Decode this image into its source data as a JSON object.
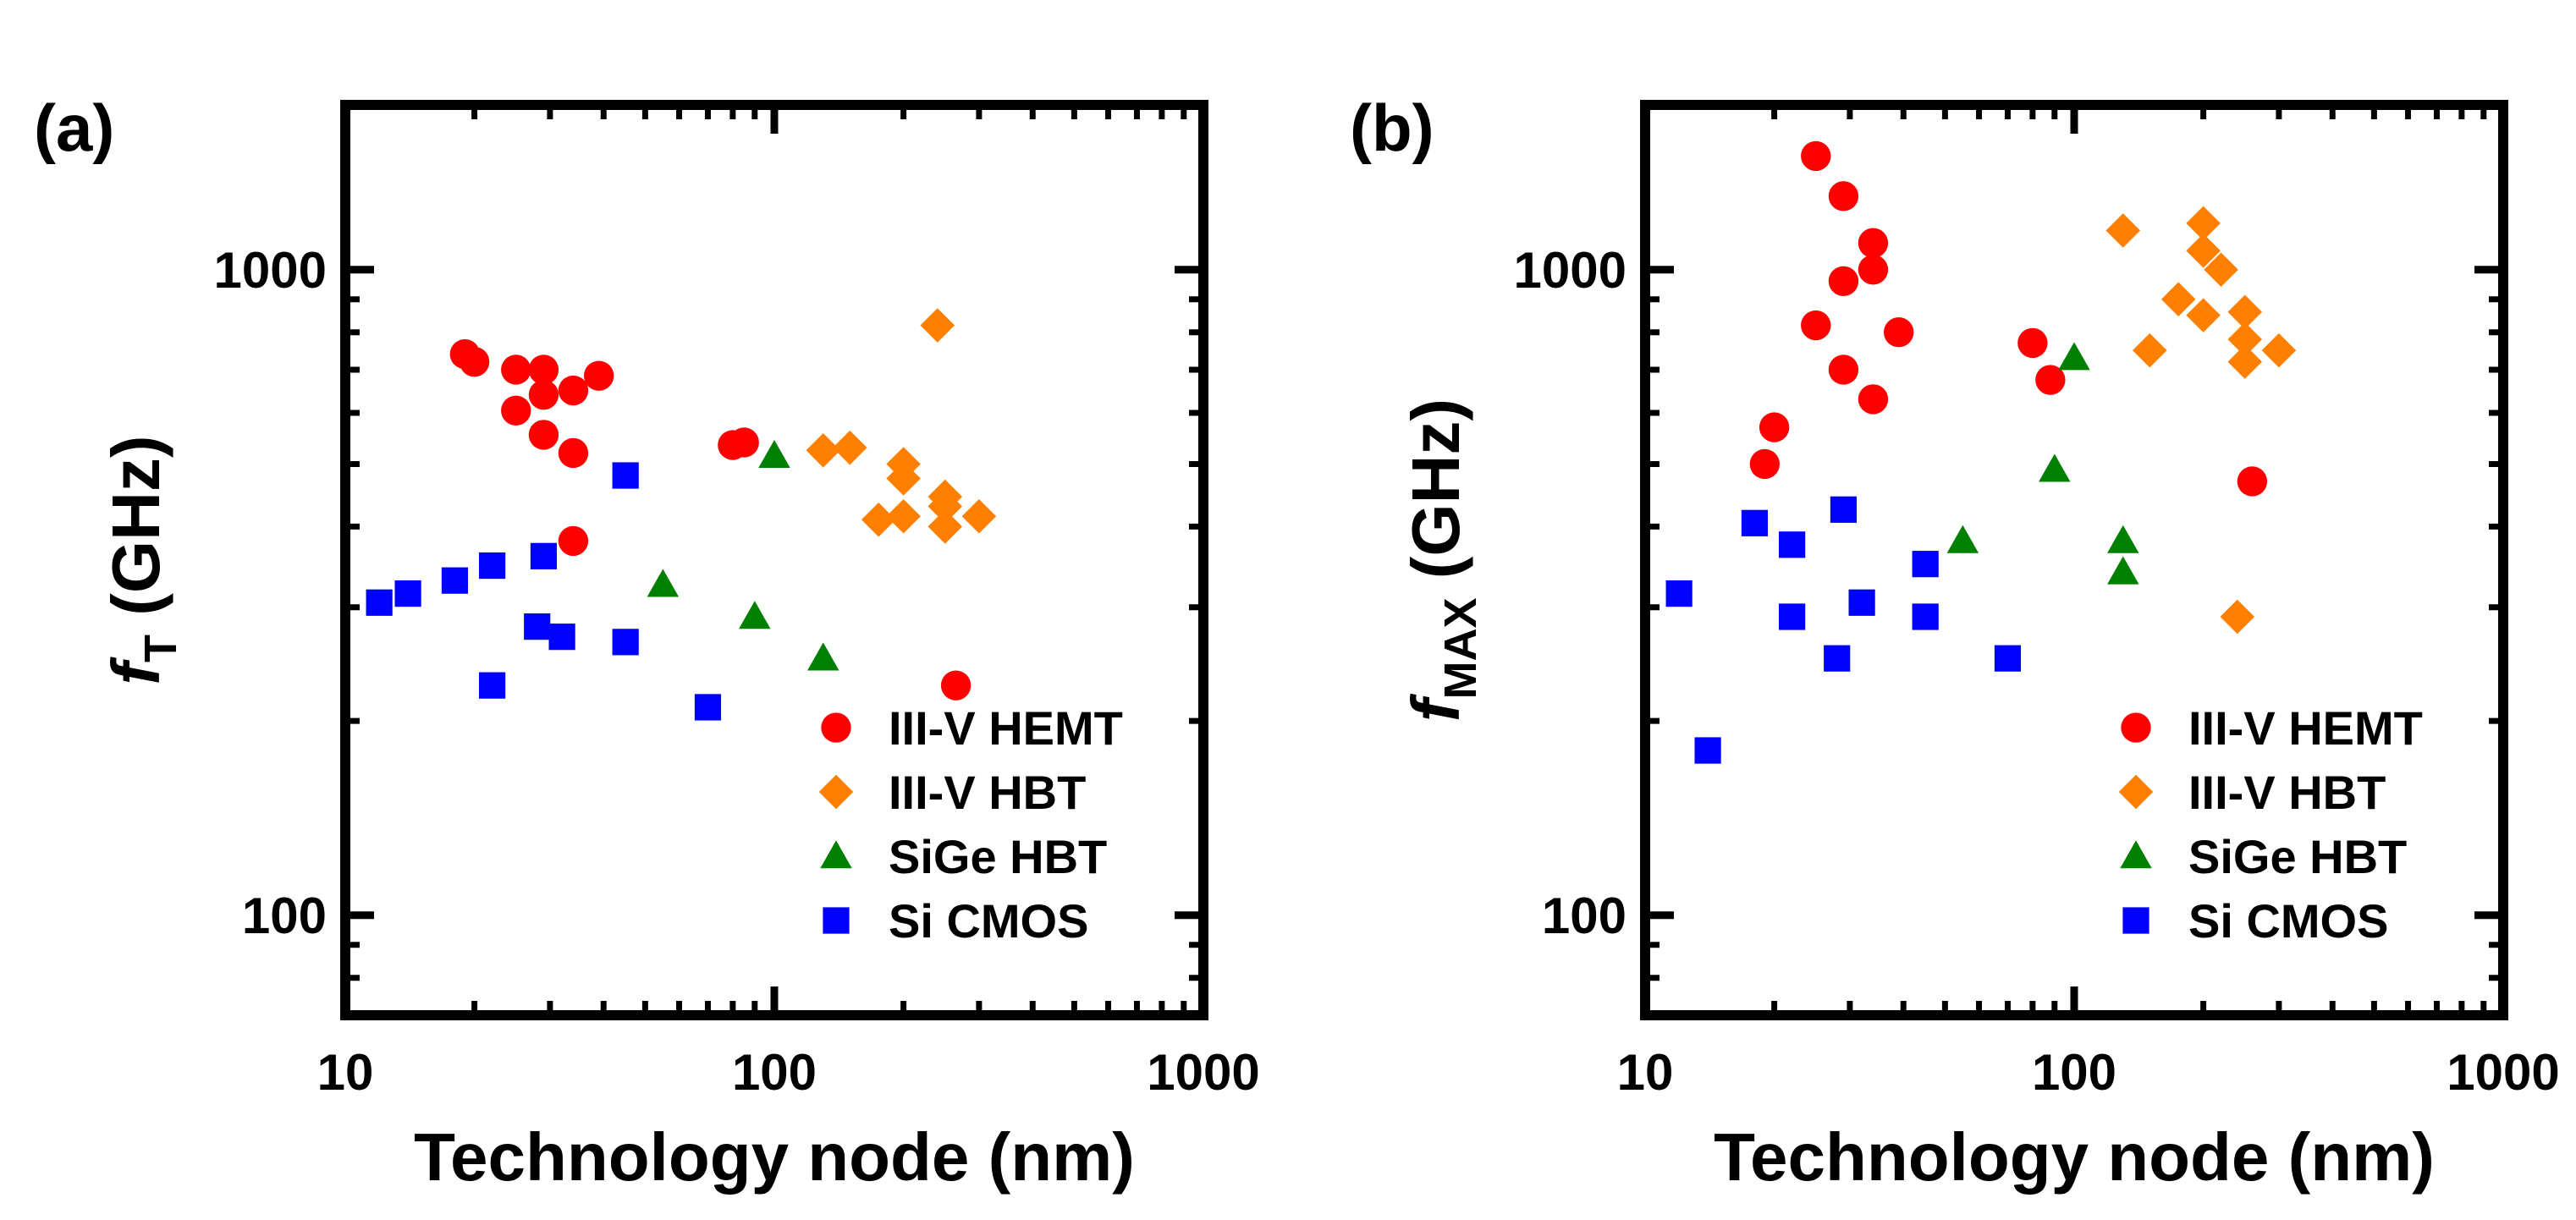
{
  "chart_data": [
    {
      "type": "scatter",
      "panel_label": "(a)",
      "ylabel_symbol": "f",
      "ylabel_sub": "T",
      "ylabel_unit": " (GHz)",
      "xlabel": "Technology node (nm)",
      "xscale": "log",
      "yscale": "log",
      "xlim": [
        10,
        1000
      ],
      "ylim": [
        70,
        1800
      ],
      "xticks": [
        "10",
        "100",
        "1000"
      ],
      "yticks": [
        "100",
        "1000"
      ],
      "legend": "lower-right",
      "series": [
        {
          "name": "III-V HEMT",
          "marker": "circle",
          "color": "#ff0000",
          "points": [
            [
              19,
              740
            ],
            [
              20,
              720
            ],
            [
              25,
              700
            ],
            [
              25,
              605
            ],
            [
              29,
              700
            ],
            [
              29,
              640
            ],
            [
              29,
              555
            ],
            [
              34,
              650
            ],
            [
              34,
              520
            ],
            [
              34,
              380
            ],
            [
              39,
              685
            ],
            [
              80,
              535
            ],
            [
              85,
              540
            ],
            [
              265,
              227
            ]
          ]
        },
        {
          "name": "III-V HBT",
          "marker": "diamond",
          "color": "#ff8000",
          "points": [
            [
              130,
              525
            ],
            [
              150,
              530
            ],
            [
              175,
              410
            ],
            [
              200,
              415
            ],
            [
              200,
              475
            ],
            [
              200,
              500
            ],
            [
              240,
              820
            ],
            [
              250,
              400
            ],
            [
              250,
              430
            ],
            [
              250,
              445
            ],
            [
              300,
              415
            ]
          ]
        },
        {
          "name": "SiGe HBT",
          "marker": "triangle",
          "color": "#008000",
          "points": [
            [
              55,
              325
            ],
            [
              90,
              290
            ],
            [
              100,
              515
            ],
            [
              130,
              250
            ]
          ]
        },
        {
          "name": "Si CMOS",
          "marker": "square",
          "color": "#0000ff",
          "points": [
            [
              12,
              305
            ],
            [
              14,
              315
            ],
            [
              18,
              330
            ],
            [
              22,
              348
            ],
            [
              22,
              227
            ],
            [
              28,
              280
            ],
            [
              29,
              360
            ],
            [
              32,
              270
            ],
            [
              45,
              265
            ],
            [
              45,
              480
            ],
            [
              70,
              210
            ]
          ]
        }
      ]
    },
    {
      "type": "scatter",
      "panel_label": "(b)",
      "ylabel_symbol": "f",
      "ylabel_sub": "MAX",
      "ylabel_unit": " (GHz)",
      "xlabel": "Technology node (nm)",
      "xscale": "log",
      "yscale": "log",
      "xlim": [
        10,
        1000
      ],
      "ylim": [
        70,
        1800
      ],
      "xticks": [
        "10",
        "100",
        "1000"
      ],
      "yticks": [
        "100",
        "1000"
      ],
      "legend": "lower-right",
      "series": [
        {
          "name": "III-V HEMT",
          "marker": "circle",
          "color": "#ff0000",
          "points": [
            [
              19,
              500
            ],
            [
              20,
              570
            ],
            [
              25,
              1500
            ],
            [
              25,
              820
            ],
            [
              29,
              1300
            ],
            [
              29,
              960
            ],
            [
              29,
              700
            ],
            [
              34,
              1100
            ],
            [
              34,
              1000
            ],
            [
              34,
              630
            ],
            [
              39,
              800
            ],
            [
              80,
              770
            ],
            [
              88,
              675
            ],
            [
              260,
              470
            ]
          ]
        },
        {
          "name": "III-V HBT",
          "marker": "diamond",
          "color": "#ff8000",
          "points": [
            [
              130,
              1150
            ],
            [
              175,
              900
            ],
            [
              150,
              750
            ],
            [
              200,
              1180
            ],
            [
              200,
              1070
            ],
            [
              200,
              850
            ],
            [
              220,
              1000
            ],
            [
              250,
              860
            ],
            [
              250,
              780
            ],
            [
              250,
              720
            ],
            [
              300,
              750
            ],
            [
              240,
              290
            ]
          ]
        },
        {
          "name": "SiGe HBT",
          "marker": "triangle",
          "color": "#008000",
          "points": [
            [
              55,
              380
            ],
            [
              90,
              490
            ],
            [
              100,
              730
            ],
            [
              130,
              380
            ],
            [
              130,
              340
            ]
          ]
        },
        {
          "name": "Si CMOS",
          "marker": "square",
          "color": "#0000ff",
          "points": [
            [
              12,
              315
            ],
            [
              14,
              180
            ],
            [
              18,
              405
            ],
            [
              22,
              375
            ],
            [
              22,
              290
            ],
            [
              28,
              250
            ],
            [
              29,
              425
            ],
            [
              32,
              305
            ],
            [
              45,
              350
            ],
            [
              45,
              290
            ],
            [
              70,
              250
            ]
          ]
        }
      ]
    }
  ]
}
